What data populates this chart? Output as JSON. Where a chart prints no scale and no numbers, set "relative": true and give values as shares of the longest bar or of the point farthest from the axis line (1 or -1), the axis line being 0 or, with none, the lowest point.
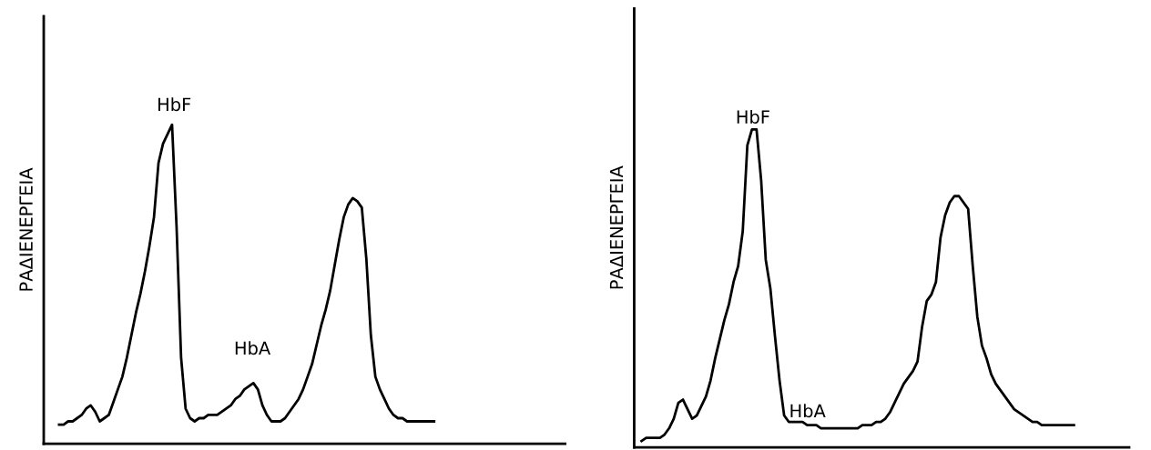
{
  "chart_data": [
    {
      "type": "line",
      "relative": true,
      "ylabel": "ΡΑΔΙΕΝΕΡΓΕΙΑ",
      "annotations": [
        "HbF",
        "HbA"
      ],
      "grid": false,
      "marker": "none",
      "line_style": "solid",
      "categories": [
        null,
        null,
        null,
        null,
        null,
        null,
        null,
        null,
        null,
        null,
        null,
        null,
        null,
        null,
        null,
        null,
        null,
        null,
        null,
        null,
        null,
        null,
        null,
        null,
        null,
        null,
        null,
        null,
        null,
        null,
        null,
        null,
        null,
        null,
        null,
        null,
        null,
        null,
        null,
        null,
        null,
        null,
        null,
        null,
        null,
        null,
        null,
        null,
        null,
        null,
        null,
        null,
        null,
        null,
        null,
        null,
        null,
        null,
        null,
        null,
        null,
        null,
        null,
        null,
        null,
        null,
        null,
        null,
        null,
        null,
        null,
        null,
        null,
        null,
        null,
        null,
        null,
        null,
        null,
        null,
        null,
        null,
        null,
        null
      ],
      "series": [
        {
          "color": "#000000",
          "values": [
            0.06,
            0.06,
            0.07,
            0.07,
            0.08,
            0.09,
            0.11,
            0.12,
            0.1,
            0.07,
            0.08,
            0.09,
            0.13,
            0.17,
            0.21,
            0.27,
            0.34,
            0.41,
            0.47,
            0.54,
            0.62,
            0.71,
            0.88,
            0.94,
            0.97,
            1.0,
            0.68,
            0.27,
            0.11,
            0.08,
            0.07,
            0.08,
            0.08,
            0.09,
            0.09,
            0.09,
            0.1,
            0.11,
            0.12,
            0.14,
            0.15,
            0.17,
            0.18,
            0.19,
            0.17,
            0.12,
            0.09,
            0.07,
            0.07,
            0.07,
            0.08,
            0.1,
            0.12,
            0.14,
            0.17,
            0.21,
            0.25,
            0.31,
            0.37,
            0.42,
            0.48,
            0.56,
            0.64,
            0.71,
            0.75,
            0.77,
            0.76,
            0.74,
            0.58,
            0.34,
            0.21,
            0.17,
            0.14,
            0.11,
            0.09,
            0.08,
            0.08,
            0.07,
            0.07,
            0.07,
            0.07,
            0.07,
            0.07,
            0.07
          ]
        }
      ]
    },
    {
      "type": "line",
      "relative": true,
      "ylabel": "ΡΑΔΙΕΝΕΡΓΕΙΑ",
      "annotations": [
        "HbF",
        "HbA"
      ],
      "grid": false,
      "marker": "none",
      "line_style": "solid",
      "categories": [
        null,
        null,
        null,
        null,
        null,
        null,
        null,
        null,
        null,
        null,
        null,
        null,
        null,
        null,
        null,
        null,
        null,
        null,
        null,
        null,
        null,
        null,
        null,
        null,
        null,
        null,
        null,
        null,
        null,
        null,
        null,
        null,
        null,
        null,
        null,
        null,
        null,
        null,
        null,
        null,
        null,
        null,
        null,
        null,
        null,
        null,
        null,
        null,
        null,
        null,
        null,
        null,
        null,
        null,
        null,
        null,
        null,
        null,
        null,
        null,
        null,
        null,
        null,
        null,
        null,
        null,
        null,
        null,
        null,
        null,
        null,
        null,
        null,
        null,
        null,
        null,
        null,
        null,
        null,
        null,
        null,
        null,
        null,
        null,
        null,
        null,
        null,
        null,
        null,
        null,
        null,
        null,
        null,
        null,
        null
      ],
      "series": [
        {
          "color": "#000000",
          "values": [
            0.02,
            0.03,
            0.03,
            0.03,
            0.03,
            0.04,
            0.06,
            0.09,
            0.14,
            0.15,
            0.12,
            0.09,
            0.1,
            0.13,
            0.16,
            0.21,
            0.28,
            0.34,
            0.4,
            0.45,
            0.52,
            0.57,
            0.68,
            0.95,
            1.0,
            1.0,
            0.84,
            0.59,
            0.5,
            0.35,
            0.21,
            0.1,
            0.08,
            0.08,
            0.08,
            0.08,
            0.07,
            0.07,
            0.07,
            0.06,
            0.06,
            0.06,
            0.06,
            0.06,
            0.06,
            0.06,
            0.06,
            0.06,
            0.07,
            0.07,
            0.07,
            0.08,
            0.08,
            0.09,
            0.11,
            0.14,
            0.17,
            0.2,
            0.22,
            0.24,
            0.27,
            0.38,
            0.46,
            0.48,
            0.52,
            0.66,
            0.73,
            0.77,
            0.79,
            0.79,
            0.77,
            0.75,
            0.57,
            0.41,
            0.32,
            0.28,
            0.23,
            0.2,
            0.18,
            0.16,
            0.14,
            0.12,
            0.11,
            0.1,
            0.09,
            0.08,
            0.08,
            0.07,
            0.07,
            0.07,
            0.07,
            0.07,
            0.07,
            0.07,
            0.07
          ]
        }
      ]
    }
  ]
}
